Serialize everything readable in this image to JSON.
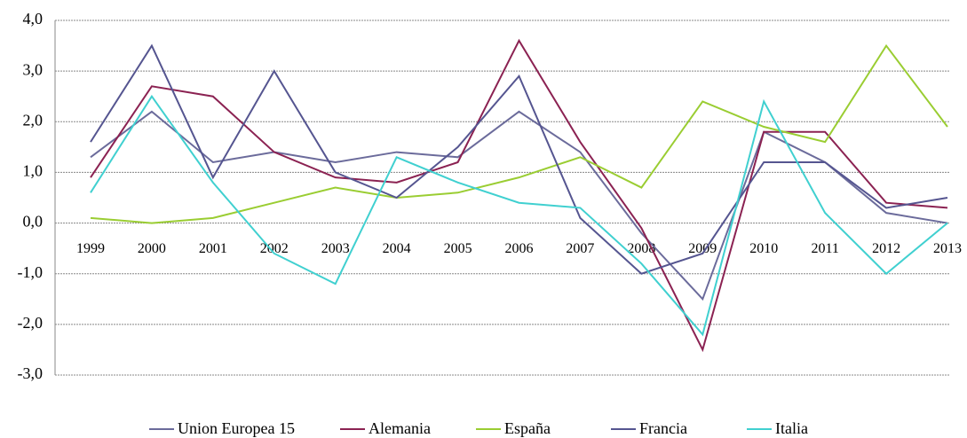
{
  "chart_data": {
    "type": "line",
    "categories": [
      "1999",
      "2000",
      "2001",
      "2002",
      "2003",
      "2004",
      "2005",
      "2006",
      "2007",
      "2008",
      "2009",
      "2010",
      "2011",
      "2012",
      "2013"
    ],
    "series": [
      {
        "name": "Union Europea 15",
        "color": "#6b6b9b",
        "values": [
          1.3,
          2.2,
          1.2,
          1.4,
          1.2,
          1.4,
          1.3,
          2.2,
          1.4,
          -0.2,
          -1.5,
          1.8,
          1.2,
          0.2,
          0.0
        ]
      },
      {
        "name": "Alemania",
        "color": "#8b2252",
        "values": [
          0.9,
          2.7,
          2.5,
          1.4,
          0.9,
          0.8,
          1.2,
          3.6,
          1.6,
          -0.1,
          -2.5,
          1.8,
          1.8,
          0.4,
          0.3
        ]
      },
      {
        "name": "España",
        "color": "#9acd32",
        "values": [
          0.1,
          0.0,
          0.1,
          0.4,
          0.7,
          0.5,
          0.6,
          0.9,
          1.3,
          0.7,
          2.4,
          1.9,
          1.6,
          3.5,
          1.9
        ]
      },
      {
        "name": "Francia",
        "color": "#555590",
        "values": [
          1.6,
          3.5,
          0.9,
          3.0,
          1.0,
          0.5,
          1.5,
          2.9,
          0.1,
          -1.0,
          -0.6,
          1.2,
          1.2,
          0.3,
          0.5
        ]
      },
      {
        "name": "Italia",
        "color": "#40d0d0",
        "values": [
          0.6,
          2.5,
          0.8,
          -0.6,
          -1.2,
          1.3,
          0.8,
          0.4,
          0.3,
          -0.8,
          -2.2,
          2.4,
          0.2,
          -1.0,
          0.0
        ]
      }
    ],
    "ylim": [
      -3,
      4
    ],
    "yticks": [
      {
        "value": -3,
        "label": "-3,0"
      },
      {
        "value": -2,
        "label": "-2,0"
      },
      {
        "value": -1,
        "label": "-1,0"
      },
      {
        "value": 0,
        "label": "0,0"
      },
      {
        "value": 1,
        "label": "1,0"
      },
      {
        "value": 2,
        "label": "2,0"
      },
      {
        "value": 3,
        "label": "3,0"
      },
      {
        "value": 4,
        "label": "4,0"
      }
    ],
    "grid": true,
    "legend": "bottom"
  }
}
